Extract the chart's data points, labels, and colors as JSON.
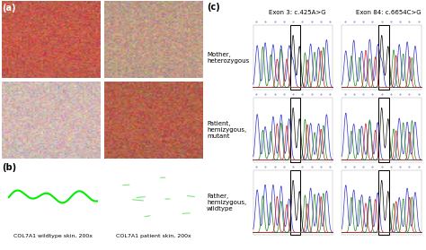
{
  "panel_a_label": "(a)",
  "panel_b_label": "(b)",
  "panel_c_label": "(c)",
  "panel_b_bg": "#0d1a08",
  "panel_b_line_color": "#00ee00",
  "wildtype_label": "COL7A1 wildtype skin, 200x",
  "patient_label": "COL7A1 patient skin, 200x",
  "exon3_label": "Exon 3: c.425A>G",
  "exon84_label": "Exon 84: c.6654C>G",
  "row_labels": [
    "Mother,\nheterozygous",
    "Patient,\nhemizygous,\nmutant",
    "Father,\nhemizygous,\nwildtype"
  ],
  "colors_blue": "#3333cc",
  "colors_green": "#228822",
  "colors_black": "#111111",
  "colors_red": "#cc2222",
  "photo_colors": {
    "tl": [
      190,
      90,
      75
    ],
    "tr": [
      185,
      155,
      135
    ],
    "bl": [
      205,
      185,
      180
    ],
    "br": [
      175,
      95,
      75
    ]
  },
  "text_color": "#111111"
}
